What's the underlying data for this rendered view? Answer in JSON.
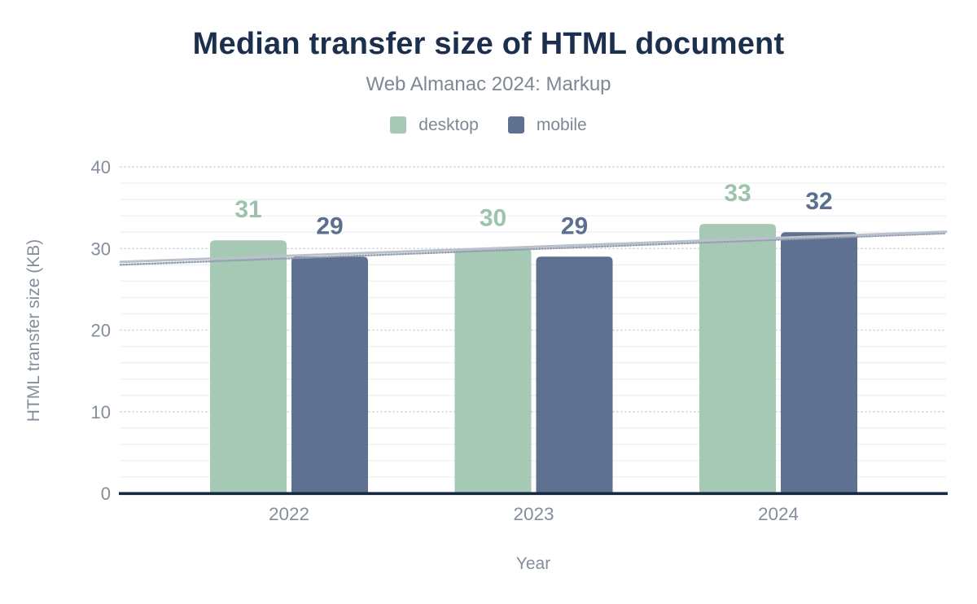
{
  "header": {
    "title": "Median transfer size of HTML document",
    "subtitle": "Web Almanac 2024: Markup"
  },
  "chart_data": {
    "type": "bar",
    "title": "Median transfer size of HTML document",
    "subtitle": "Web Almanac 2024: Markup",
    "categories": [
      "2022",
      "2023",
      "2024"
    ],
    "series": [
      {
        "name": "desktop",
        "color": "#a5c9b5",
        "label_color": "#9dc3ad",
        "values": [
          31,
          30,
          33
        ]
      },
      {
        "name": "mobile",
        "color": "#5f7190",
        "label_color": "#5d6f8e",
        "values": [
          29,
          29,
          32
        ]
      }
    ],
    "trendlines": [
      {
        "name": "mobile-trend",
        "style": "dotted",
        "color": "#949ead",
        "stroke_width": 2.4,
        "y_start": 28.0,
        "y_end": 31.85
      },
      {
        "name": "desktop-trend",
        "style": "solid",
        "color": "#b9c1cb",
        "stroke_width": 3,
        "y_start": 28.35,
        "y_end": 32.05
      }
    ],
    "xlabel": "Year",
    "ylabel": "HTML transfer size (KB)",
    "ylim": [
      0,
      40
    ],
    "yticks": [
      0,
      10,
      20,
      30,
      40
    ],
    "minor_grid_step": 2,
    "grid": true,
    "legend_position": "top",
    "data_labels": true
  },
  "colors": {
    "background": "#ffffff",
    "title": "#1c304e",
    "subtitle": "#7d8896",
    "axis_text": "#848e9b",
    "axis_line": "#152a40",
    "major_grid": "#cbd1d9",
    "minor_grid": "#eef0f3"
  }
}
